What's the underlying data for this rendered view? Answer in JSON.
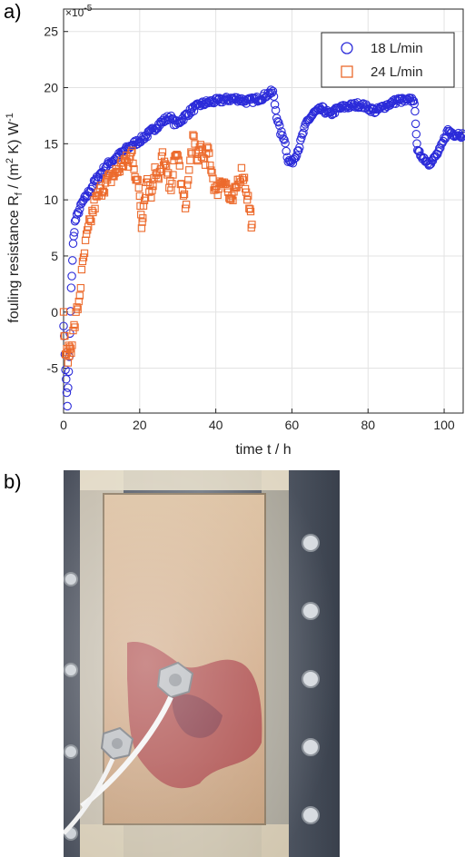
{
  "panels": {
    "a": "a)",
    "b": "b)"
  },
  "chart_data": {
    "type": "scatter",
    "xlabel": "time t / h",
    "ylabel": "fouling resistance R_f / (m^2 K) W^-1",
    "y_exponent_label": "×10^-5",
    "xlim": [
      0,
      105
    ],
    "ylim": [
      -9,
      27
    ],
    "xticks": [
      0,
      20,
      40,
      60,
      80,
      100
    ],
    "yticks": [
      -5,
      0,
      5,
      10,
      15,
      20,
      25
    ],
    "grid": true,
    "legend_position": "top-right",
    "series": [
      {
        "name": "18 L/min",
        "marker": "circle",
        "color": "#2b2bd9",
        "anchors": [
          [
            0.0,
            -1.0
          ],
          [
            0.5,
            -5.0
          ],
          [
            1.0,
            -8.3
          ],
          [
            1.5,
            -4.0
          ],
          [
            2.0,
            2.0
          ],
          [
            2.5,
            6.0
          ],
          [
            3.0,
            8.0
          ],
          [
            4.0,
            9.0
          ],
          [
            5.0,
            9.8
          ],
          [
            6.0,
            10.3
          ],
          [
            8.0,
            11.5
          ],
          [
            10.0,
            12.5
          ],
          [
            12.0,
            13.3
          ],
          [
            14.0,
            13.8
          ],
          [
            16.0,
            14.4
          ],
          [
            18.0,
            14.9
          ],
          [
            20.0,
            15.3
          ],
          [
            22.0,
            15.8
          ],
          [
            24.0,
            16.4
          ],
          [
            26.0,
            17.0
          ],
          [
            28.0,
            17.4
          ],
          [
            29.0,
            16.9
          ],
          [
            30.0,
            16.8
          ],
          [
            32.0,
            17.5
          ],
          [
            34.0,
            18.1
          ],
          [
            36.0,
            18.5
          ],
          [
            38.0,
            18.7
          ],
          [
            40.0,
            18.8
          ],
          [
            42.0,
            18.9
          ],
          [
            44.0,
            19.0
          ],
          [
            46.0,
            19.0
          ],
          [
            48.0,
            18.8
          ],
          [
            50.0,
            18.9
          ],
          [
            52.0,
            19.1
          ],
          [
            54.0,
            19.5
          ],
          [
            55.0,
            19.6
          ],
          [
            56.0,
            17.5
          ],
          [
            57.0,
            16.0
          ],
          [
            58.0,
            15.5
          ],
          [
            59.0,
            13.5
          ],
          [
            60.0,
            13.3
          ],
          [
            61.0,
            14.0
          ],
          [
            62.0,
            14.8
          ],
          [
            63.0,
            16.0
          ],
          [
            64.0,
            17.0
          ],
          [
            66.0,
            17.8
          ],
          [
            68.0,
            18.1
          ],
          [
            70.0,
            17.6
          ],
          [
            72.0,
            18.1
          ],
          [
            74.0,
            18.3
          ],
          [
            76.0,
            18.4
          ],
          [
            78.0,
            18.5
          ],
          [
            80.0,
            18.2
          ],
          [
            82.0,
            17.9
          ],
          [
            84.0,
            18.3
          ],
          [
            86.0,
            18.6
          ],
          [
            88.0,
            18.9
          ],
          [
            90.0,
            18.8
          ],
          [
            91.0,
            18.9
          ],
          [
            92.0,
            19.0
          ],
          [
            92.5,
            17.0
          ],
          [
            93.0,
            14.2
          ],
          [
            94.0,
            14.0
          ],
          [
            95.0,
            13.6
          ],
          [
            96.0,
            13.3
          ],
          [
            97.0,
            13.5
          ],
          [
            98.0,
            14.0
          ],
          [
            99.0,
            14.5
          ],
          [
            100.0,
            15.4
          ],
          [
            101.0,
            16.2
          ],
          [
            102.0,
            16.0
          ],
          [
            103.0,
            15.8
          ],
          [
            104.0,
            15.9
          ],
          [
            105.0,
            15.7
          ]
        ]
      },
      {
        "name": "24 L/min",
        "marker": "square",
        "color": "#ec6a2c",
        "anchors": [
          [
            0.0,
            -0.5
          ],
          [
            0.5,
            -3.5
          ],
          [
            1.0,
            -4.0
          ],
          [
            1.5,
            -3.5
          ],
          [
            2.0,
            -3.0
          ],
          [
            3.0,
            -1.0
          ],
          [
            4.0,
            1.0
          ],
          [
            5.0,
            4.0
          ],
          [
            6.0,
            6.5
          ],
          [
            7.0,
            8.0
          ],
          [
            8.0,
            9.5
          ],
          [
            10.0,
            11.0
          ],
          [
            12.0,
            11.8
          ],
          [
            14.0,
            12.5
          ],
          [
            16.0,
            13.5
          ],
          [
            17.0,
            13.2
          ],
          [
            18.0,
            14.3
          ],
          [
            19.0,
            12.0
          ],
          [
            20.0,
            10.5
          ],
          [
            20.5,
            8.0
          ],
          [
            21.0,
            9.5
          ],
          [
            22.0,
            12.0
          ],
          [
            23.0,
            10.5
          ],
          [
            24.0,
            13.0
          ],
          [
            25.0,
            11.5
          ],
          [
            26.0,
            14.0
          ],
          [
            27.0,
            12.5
          ],
          [
            28.0,
            11.0
          ],
          [
            29.0,
            13.0
          ],
          [
            30.0,
            14.3
          ],
          [
            31.0,
            11.0
          ],
          [
            32.0,
            9.5
          ],
          [
            33.0,
            12.5
          ],
          [
            34.0,
            15.5
          ],
          [
            35.0,
            13.5
          ],
          [
            36.0,
            15.0
          ],
          [
            37.0,
            13.0
          ],
          [
            38.0,
            14.5
          ],
          [
            39.0,
            12.5
          ],
          [
            40.0,
            10.5
          ],
          [
            41.0,
            11.5
          ],
          [
            42.0,
            12.0
          ],
          [
            43.0,
            11.0
          ],
          [
            44.0,
            9.5
          ],
          [
            45.0,
            10.5
          ],
          [
            46.0,
            12.0
          ],
          [
            47.0,
            12.5
          ],
          [
            48.0,
            11.0
          ],
          [
            49.0,
            9.0
          ],
          [
            49.5,
            7.8
          ]
        ]
      }
    ]
  },
  "photo": {
    "description_colors": {
      "background": "#5e6673",
      "plate": "#d9b693",
      "deposit": "#a3303a",
      "frame": "#e3d9c3"
    }
  }
}
